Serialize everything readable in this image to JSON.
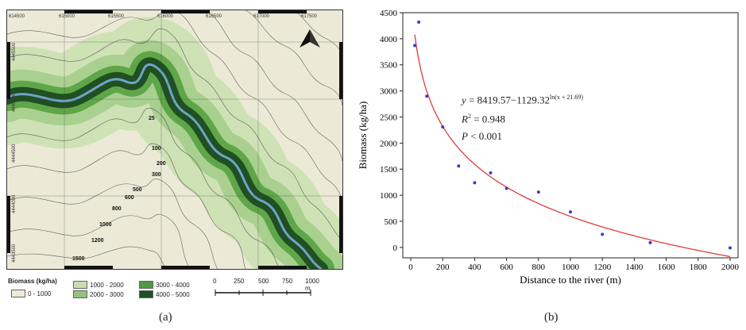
{
  "panel_a": {
    "label": "(a)",
    "top_coords": [
      "614500",
      "615000",
      "615500",
      "616000",
      "616500",
      "617000",
      "617500"
    ],
    "left_coords": [
      "4445500",
      "4445000",
      "4444500",
      "4444000",
      "4443500"
    ],
    "contour_labels": [
      "25",
      "100",
      "200",
      "300",
      "500",
      "600",
      "800",
      "1000",
      "1200",
      "1500"
    ],
    "legend": {
      "title": "Biomass (kg/ha)",
      "classes": [
        {
          "label": "0 - 1000",
          "color": "#eeebd8"
        },
        {
          "label": "1000 - 2000",
          "color": "#c7deb0"
        },
        {
          "label": "2000 - 3000",
          "color": "#93c47d"
        },
        {
          "label": "3000 - 4000",
          "color": "#4f9a3e"
        },
        {
          "label": "4000 - 5000",
          "color": "#1f4f22"
        }
      ]
    },
    "scale": {
      "ticks": [
        "0",
        "250",
        "500",
        "750",
        "1000 m"
      ]
    },
    "north_arrow": "north-arrow-icon"
  },
  "panel_b": {
    "label": "(b)",
    "equation": {
      "y_var": "y",
      "rhs": " = 8419.57−1129.32",
      "exponent": "ln(x + 21.69)",
      "r2_var": "R",
      "r2_sup": "2",
      "r2_val": " = 0.948",
      "p_var": "P",
      "p_val": " < 0.001"
    }
  },
  "chart_data": {
    "type": "scatter",
    "xlabel": "Distance to the river (m)",
    "ylabel": "Biomass (kg/ha)",
    "xlim": [
      -50,
      2050
    ],
    "ylim": [
      -200,
      4500
    ],
    "xticks": [
      0,
      200,
      400,
      600,
      800,
      1000,
      1200,
      1400,
      1600,
      1800,
      2000
    ],
    "yticks": [
      0,
      500,
      1000,
      1500,
      2000,
      2500,
      3000,
      3500,
      4000,
      4500
    ],
    "grid": false,
    "series": [
      {
        "kind": "points",
        "color": "#3a3ad0",
        "x": [
          25,
          50,
          100,
          200,
          300,
          400,
          500,
          600,
          800,
          1000,
          1200,
          1500,
          2000
        ],
        "y": [
          3870,
          4320,
          2900,
          2310,
          1560,
          1240,
          1430,
          1130,
          1060,
          680,
          250,
          90,
          -10
        ]
      },
      {
        "kind": "fit",
        "color": "#e03a3a",
        "model": "y = 8419.57-1129.32 ln(x + 21.69)",
        "params": {
          "a": 8419.57,
          "b": 1129.32,
          "c": 21.69
        },
        "x_range": [
          25,
          2000
        ]
      }
    ]
  }
}
